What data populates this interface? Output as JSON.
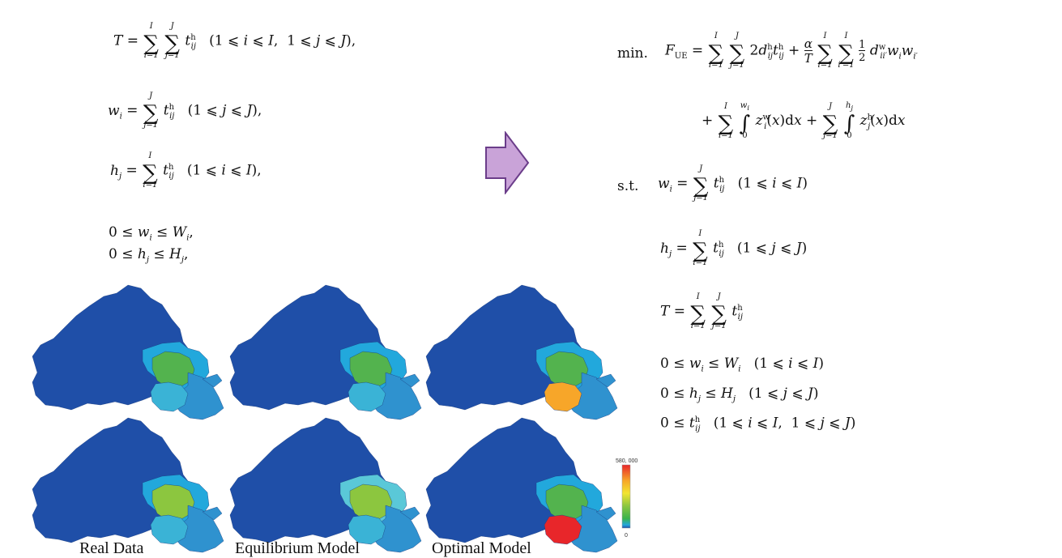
{
  "left_equations": [
    {
      "lhs": "T =",
      "body": "Σ Σ t",
      "sup": "h",
      "sub": "ij",
      "limits": [
        "i=1",
        "I",
        "j=1",
        "J"
      ],
      "cond": "(1 ⩽ i ⩽ I,  1 ⩽ j ⩽ J),"
    },
    {
      "lhs": "w",
      "lhs_sub": "i",
      "body": "Σ t",
      "sup": "h",
      "sub": "ij",
      "limits": [
        "j=1",
        "J"
      ],
      "cond": "(1 ⩽ j ⩽ J),"
    },
    {
      "lhs": "h",
      "lhs_sub": "j",
      "body": "Σ t",
      "sup": "h",
      "sub": "ij",
      "limits": [
        "i=1",
        "I"
      ],
      "cond": "(1 ⩽ i ⩽ I),"
    },
    {
      "text": "0 ≤ wᵢ ≤ Wᵢ,"
    },
    {
      "text": "0 ≤ hⱼ ≤ Hⱼ,"
    }
  ],
  "right_equations": {
    "min_label": "min.",
    "objective_line1": "F",
    "objective_sub": "UE",
    "objective_rest1": "= Σ Σ 2dʰᵢⱼtʰᵢⱼ + α/T Σ Σ ½ dʷᵢᵢ′ wᵢwᵢ′",
    "objective_line2": "+ Σ ∫ zʷᵢ(x)dx + Σ ∫ zʰⱼ(x)dx",
    "st_label": "s.t.",
    "constraints": [
      "wᵢ = Σ tʰᵢⱼ   (1 ⩽ i ⩽ I)",
      "hⱼ = Σ tʰᵢⱼ   (1 ⩽ j ⩽ J)",
      "T = Σ Σ tʰᵢⱼ",
      "0 ≤ wᵢ ≤ Wᵢ   (1 ⩽ i ⩽ I)",
      "0 ≤ hⱼ ≤ Hⱼ   (1 ⩽ j ⩽ J)",
      "0 ≤ tʰᵢⱼ   (1 ⩽ i ⩽ I,  1 ⩽ j ⩽ J)"
    ]
  },
  "arrow": {
    "color": "#c9a3d8",
    "stroke": "#6b3d8a",
    "icon": "right-arrow-icon"
  },
  "maps": {
    "captions": [
      "Real Data",
      "Equilibrium Model",
      "Optimal Model"
    ],
    "rows": [
      {
        "zones": [
          "#1f4fa8",
          "#22a8dc",
          "#53b34e",
          "#2f92cf",
          "#3ab3d6"
        ]
      },
      {
        "zones": [
          "#1f4fa8",
          "#22a8dc",
          "#53b34e",
          "#2f92cf",
          "#3ab3d6"
        ]
      },
      {
        "zones": [
          "#1f4fa8",
          "#22a8dc",
          "#53b34e",
          "#2f92cf",
          "#f7a629"
        ]
      },
      {
        "zones": [
          "#1f4fa8",
          "#22a8dc",
          "#8cc63f",
          "#2f92cf",
          "#3ab3d6"
        ]
      },
      {
        "zones": [
          "#1f4fa8",
          "#5ac8d8",
          "#8cc63f",
          "#2f92cf",
          "#3ab3d6"
        ]
      },
      {
        "zones": [
          "#1f4fa8",
          "#22a8dc",
          "#53b34e",
          "#2f92cf",
          "#e8262a"
        ]
      }
    ]
  },
  "colorbar": {
    "max_label": "580, 000",
    "min_label": "0"
  }
}
